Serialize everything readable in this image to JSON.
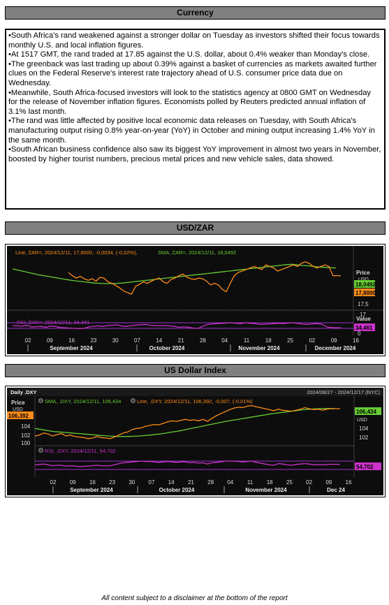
{
  "sections": {
    "currency": "Currency",
    "usdzar": "USD/ZAR",
    "dxy": "US Dollar Index"
  },
  "news": [
    "•South Africa's rand weakened against a stronger dollar on Tuesday as investors shifted their focus towards monthly U.S. and local inflation figures.",
    "•At 1517 GMT, the rand traded at 17.85 against the U.S. dollar, about 0.4% weaker than Monday's close.",
    "•The greenback was last trading up about 0.39% against a basket of currencies as markets awaited further clues on the Federal Reserve's interest rate trajectory ahead of U.S. consumer price data due on Wednesday.",
    "•Meanwhile, South Africa-focused investors will look to the statistics agency at 0800 GMT on Wednesday for the release of November inflation figures. Economists polled by Reuters predicted annual inflation of 3.1% last month.",
    "•The rand was little affected by positive local economic data releases on Tuesday, with South Africa's manufacturing output rising 0.8% year-on-year (YoY) in October and mining output increasing 1.4% YoY in the same month.",
    "•South African business confidence also saw its biggest YoY improvement in almost two years in November, boosted by higher tourist numbers, precious metal prices and new vehicle sales, data showed."
  ],
  "footer": "All content subject to a disclaimer at the bottom of the report",
  "colors": {
    "chart_bg": "#0d0d0d",
    "line": "#ff8c1a",
    "sma": "#66cc33",
    "rsi": "#cc33cc",
    "band": "#9933cc",
    "price_tag_line": "#ff8c1a",
    "price_tag_sma": "#66cc33",
    "price_tag_rsi": "#cc33cc"
  },
  "chart_data": [
    {
      "type": "line",
      "id": "usdzar",
      "legend_top": "Line, ZAR=, 2024/12/11, 17,8000, -0,0034, (-0,02%), SMA, ZAR=, 2024/12/11, 18,0492",
      "legend_line_prefix": "Line, ZAR=, 2024/12/11, 17,8000, -0,0034, (-0,02%),",
      "legend_sma": "SMA, ZAR=, 2024/12/11, 18,0492",
      "legend_rsi": "RSI, ZAR=, 2024/12/11, 34,461",
      "price_axis_label": "Price",
      "price_axis_currency": "USD",
      "value_axis_label": "Value",
      "y_ticks": [
        "17,5",
        "17"
      ],
      "rsi_ticks": [
        "0"
      ],
      "tag_sma": "18,0492",
      "tag_line": "17,8000",
      "tag_rsi": "34,461",
      "x_ticks": [
        "02",
        "09",
        "16",
        "23",
        "30",
        "07",
        "14",
        "21",
        "28",
        "04",
        "11",
        "18",
        "25",
        "02",
        "09",
        "16"
      ],
      "month_labels": [
        "September 2024",
        "October 2024",
        "November 2024",
        "December 2024"
      ],
      "ylim": [
        16.95,
        18.45
      ],
      "line_values": [
        17.9,
        17.8,
        17.72,
        17.78,
        17.7,
        17.65,
        17.7,
        17.62,
        17.75,
        17.72,
        17.6,
        17.55,
        17.48,
        17.4,
        17.3,
        17.25,
        17.2,
        17.45,
        17.52,
        17.6,
        17.55,
        17.62,
        17.68,
        17.72,
        17.6,
        17.55,
        17.68,
        17.72,
        17.8,
        17.85,
        17.75,
        17.7,
        17.68,
        17.72,
        17.7,
        17.62,
        17.5,
        17.55,
        17.5,
        17.35,
        17.28,
        17.55,
        17.8,
        17.9,
        17.95,
        18.0,
        18.05,
        18.1,
        18.05,
        18.0,
        18.15,
        18.1,
        18.05,
        17.95,
        18.0,
        18.05,
        18.1,
        18.15,
        18.1,
        18.2,
        18.25,
        18.2,
        18.1,
        18.05,
        18.1,
        18.15,
        18.1,
        17.8,
        17.8,
        17.8
      ],
      "sma_values": [
        18.02,
        17.98,
        17.94,
        17.9,
        17.86,
        17.82,
        17.79,
        17.76,
        17.73,
        17.7,
        17.67,
        17.64,
        17.62,
        17.6,
        17.58,
        17.56,
        17.55,
        17.54,
        17.54,
        17.55,
        17.56,
        17.58,
        17.6,
        17.62,
        17.64,
        17.66,
        17.68,
        17.7,
        17.72,
        17.74,
        17.76,
        17.78,
        17.8,
        17.82,
        17.84,
        17.86,
        17.88,
        17.9,
        17.92,
        17.94,
        17.96,
        17.98,
        18.0,
        18.02,
        18.04,
        18.06,
        18.08,
        18.1,
        18.12,
        18.14,
        18.16,
        18.17,
        18.15,
        18.13,
        18.12,
        18.1,
        18.08,
        18.07,
        18.06,
        18.05
      ],
      "rsi_values": [
        50,
        48,
        45,
        52,
        40,
        42,
        44,
        38,
        47,
        44,
        36,
        34,
        32,
        30,
        28,
        30,
        40,
        45,
        48,
        44,
        50,
        52,
        55,
        46,
        44,
        50,
        53,
        56,
        58,
        52,
        50,
        48,
        50,
        48,
        44,
        38,
        40,
        38,
        32,
        30,
        46,
        58,
        62,
        64,
        66,
        68,
        70,
        66,
        64,
        70,
        66,
        64,
        58,
        60,
        62,
        64,
        66,
        64,
        68,
        70,
        66,
        60,
        58,
        62,
        64,
        60,
        40,
        36,
        34.461,
        34.461
      ],
      "rsi_ylim": [
        0,
        100
      ],
      "rsi_bands": [
        30,
        70
      ]
    },
    {
      "type": "line",
      "id": "dxy",
      "header_left": "Daily .DXY",
      "header_right": "2024/08/27 - 2024/12/17 (NYC)",
      "legend_sma": "SMA, .DXY, 2024/12/11, 106,434",
      "legend_line": "Line, .DXY, 2024/12/11, 106,392, -0,007, (-0,01%)",
      "legend_rsi": "RSI, .DXY, 2024/12/11, 54,702",
      "price_axis_label": "Price",
      "price_axis_currency": "USD",
      "y_ticks_left": [
        "104",
        "102",
        "100"
      ],
      "y_ticks_right": [
        "USD",
        "104",
        "102"
      ],
      "tag_line_left": "106,392",
      "tag_sma": "106,434",
      "tag_rsi": "54,702",
      "x_ticks": [
        "02",
        "09",
        "16",
        "23",
        "30",
        "07",
        "14",
        "21",
        "28",
        "04",
        "11",
        "18",
        "25",
        "02",
        "09",
        "16"
      ],
      "month_labels": [
        "September 2024",
        "October 2024",
        "November 2024",
        "Dec 24"
      ],
      "ylim": [
        99.5,
        107.5
      ],
      "line_values": [
        101.0,
        101.2,
        101.6,
        101.4,
        101.0,
        101.3,
        101.5,
        101.0,
        101.2,
        100.9,
        100.8,
        100.7,
        100.5,
        100.6,
        100.9,
        100.7,
        100.6,
        100.5,
        100.8,
        101.2,
        101.6,
        101.8,
        102.3,
        102.5,
        102.6,
        102.9,
        103.1,
        103.3,
        103.2,
        103.5,
        103.8,
        104.0,
        103.9,
        104.1,
        104.3,
        104.1,
        104.2,
        104.0,
        104.3,
        103.9,
        104.5,
        105.0,
        105.4,
        105.8,
        106.2,
        106.5,
        106.7,
        106.6,
        106.9,
        107.0,
        106.8,
        106.6,
        106.4,
        106.2,
        106.0,
        106.3,
        106.1,
        106.0,
        105.9,
        106.1,
        106.3,
        106.6,
        106.4,
        106.2,
        106.3,
        106.1,
        106.3,
        106.4,
        106.392,
        106.392
      ],
      "sma_values": [
        102.5,
        102.3,
        102.1,
        101.9,
        101.8,
        101.7,
        101.6,
        101.5,
        101.4,
        101.3,
        101.2,
        101.1,
        101.0,
        100.95,
        100.9,
        100.9,
        100.95,
        101.0,
        101.1,
        101.2,
        101.35,
        101.5,
        101.7,
        101.9,
        102.1,
        102.35,
        102.6,
        102.85,
        103.1,
        103.35,
        103.6,
        103.85,
        104.05,
        104.25,
        104.45,
        104.65,
        104.85,
        105.05,
        105.25,
        105.45,
        105.6,
        105.75,
        105.9,
        106.05,
        106.2,
        106.3,
        106.38,
        106.42,
        106.43,
        106.434
      ],
      "rsi_values": [
        52,
        54,
        56,
        52,
        48,
        50,
        50,
        46,
        48,
        46,
        44,
        45,
        46,
        48,
        50,
        48,
        47,
        48,
        52,
        58,
        62,
        64,
        66,
        68,
        70,
        68,
        68,
        66,
        64,
        66,
        68,
        66,
        64,
        66,
        66,
        62,
        64,
        60,
        62,
        56,
        62,
        64,
        66,
        70,
        70,
        70,
        68,
        66,
        68,
        70,
        64,
        60,
        56,
        52,
        50,
        58,
        56,
        52,
        50,
        54,
        56,
        58,
        56,
        52,
        54,
        52,
        54,
        55,
        54.702,
        54.702
      ],
      "rsi_ylim": [
        0,
        100
      ],
      "rsi_bands": [
        30,
        70
      ]
    }
  ]
}
